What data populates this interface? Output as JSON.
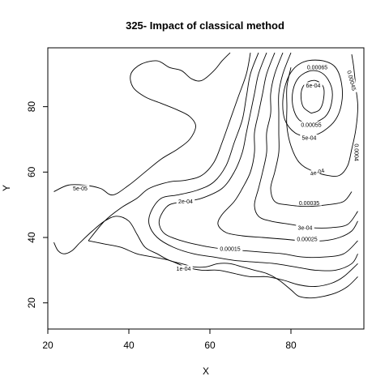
{
  "chart_data": {
    "type": "contour",
    "title": "325- Impact of classical method",
    "xlabel": "X",
    "ylabel": "Y",
    "xlim": [
      20,
      98
    ],
    "ylim": [
      12,
      98
    ],
    "xticks": [
      20,
      40,
      60,
      80
    ],
    "yticks": [
      20,
      40,
      60,
      80
    ],
    "x_tick_labels": [
      "20",
      "40",
      "60",
      "80"
    ],
    "y_tick_labels": [
      "20",
      "40",
      "60",
      "80"
    ],
    "grid": false,
    "levels": [
      {
        "label": "5e-05",
        "label_pos": [
          28,
          55
        ],
        "label_rot": 0,
        "paths": [
          [
            [
              21.5,
              54
            ],
            [
              25,
              56
            ],
            [
              29,
              56
            ],
            [
              33,
              55
            ],
            [
              36,
              53
            ],
            [
              40,
              56
            ],
            [
              44,
              60
            ],
            [
              48,
              64
            ],
            [
              52,
              67
            ],
            [
              55,
              70
            ],
            [
              56.5,
              74
            ],
            [
              55,
              77
            ],
            [
              52,
              79
            ],
            [
              48,
              81
            ],
            [
              44,
              83
            ],
            [
              41,
              86
            ],
            [
              40.5,
              90
            ],
            [
              43,
              93
            ],
            [
              47,
              94
            ],
            [
              50,
              92
            ],
            [
              53,
              91
            ],
            [
              55.5,
              88.5
            ],
            [
              58,
              88
            ],
            [
              61,
              91
            ],
            [
              63,
              94
            ],
            [
              65,
              96.5
            ]
          ],
          [
            [
              21.5,
              38.5
            ],
            [
              22.5,
              36
            ],
            [
              24,
              35
            ],
            [
              26,
              36
            ],
            [
              28,
              38.5
            ],
            [
              31,
              42
            ],
            [
              34,
              45
            ],
            [
              37,
              46.5
            ],
            [
              40,
              45
            ],
            [
              42,
              41
            ],
            [
              44,
              37
            ],
            [
              47,
              35
            ],
            [
              50,
              33
            ],
            [
              53,
              32
            ],
            [
              56,
              31
            ],
            [
              59,
              31
            ],
            [
              62,
              32
            ],
            [
              65,
              32
            ],
            [
              68,
              31
            ],
            [
              71,
              30
            ],
            [
              74,
              29
            ],
            [
              77,
              27
            ],
            [
              80,
              24
            ],
            [
              82,
              22
            ],
            [
              85,
              21.5
            ],
            [
              88,
              22
            ],
            [
              91,
              23
            ],
            [
              94,
              25
            ],
            [
              96.5,
              28
            ]
          ]
        ]
      },
      {
        "label": "1e-04",
        "label_pos": [
          53.5,
          30.5
        ],
        "label_rot": 0,
        "paths": [
          [
            [
              30,
              39
            ],
            [
              34,
              45
            ],
            [
              38,
              49
            ],
            [
              42,
              52
            ],
            [
              45,
              55
            ],
            [
              50,
              57
            ],
            [
              54,
              57.5
            ],
            [
              58,
              59
            ],
            [
              61,
              63
            ],
            [
              63,
              69
            ],
            [
              65,
              76
            ],
            [
              67,
              83
            ],
            [
              69,
              90
            ],
            [
              70,
              96.5
            ]
          ],
          [
            [
              30,
              39
            ],
            [
              34,
              38
            ],
            [
              38,
              37
            ],
            [
              42,
              35
            ],
            [
              46,
              34
            ],
            [
              50,
              33
            ],
            [
              54,
              31
            ],
            [
              58,
              30
            ],
            [
              62,
              30
            ],
            [
              66,
              29
            ],
            [
              70,
              28
            ],
            [
              74,
              28
            ],
            [
              78,
              27
            ],
            [
              82,
              25.5
            ],
            [
              86,
              25
            ],
            [
              90,
              26
            ],
            [
              93,
              28
            ],
            [
              96.5,
              32
            ]
          ]
        ]
      },
      {
        "label": "2e-04",
        "label_pos": [
          54,
          51
        ],
        "label_rot": 0,
        "paths": [
          [
            [
              72,
              96.5
            ],
            [
              70,
              90
            ],
            [
              69,
              83
            ],
            [
              68,
              76
            ],
            [
              66,
              69
            ],
            [
              64,
              62
            ],
            [
              61,
              57
            ],
            [
              57,
              54.5
            ],
            [
              52,
              53
            ],
            [
              48,
              52
            ],
            [
              45.5,
              48
            ],
            [
              45,
              44
            ],
            [
              47,
              40
            ],
            [
              51,
              37
            ],
            [
              56,
              35
            ],
            [
              61,
              34
            ],
            [
              66,
              33
            ],
            [
              71,
              32.5
            ],
            [
              76,
              32
            ],
            [
              81,
              31
            ],
            [
              86,
              30
            ],
            [
              91,
              30
            ],
            [
              95,
              32
            ],
            [
              96.5,
              35
            ]
          ]
        ]
      },
      {
        "label": "0.00015",
        "label_pos": [
          65,
          36.5
        ],
        "label_rot": 0,
        "paths": [
          [
            [
              74,
              96.5
            ],
            [
              72,
              90
            ],
            [
              71,
              84
            ],
            [
              70,
              78
            ],
            [
              69,
              72
            ],
            [
              68,
              66
            ],
            [
              66,
              60
            ],
            [
              63,
              55
            ],
            [
              58,
              52
            ],
            [
              54,
              51
            ],
            [
              50,
              50
            ],
            [
              48,
              47
            ],
            [
              47.5,
              44
            ],
            [
              49,
              41
            ],
            [
              53,
              39
            ],
            [
              58,
              37.5
            ],
            [
              63,
              36.5
            ],
            [
              68,
              36
            ],
            [
              73,
              35.5
            ],
            [
              78,
              35
            ],
            [
              83,
              34
            ],
            [
              88,
              34
            ],
            [
              93,
              35
            ],
            [
              96.5,
              39
            ]
          ]
        ]
      },
      {
        "label": "0.00025",
        "label_pos": [
          84,
          39.5
        ],
        "label_rot": 0,
        "paths": [
          [
            [
              76,
              96.5
            ],
            [
              74,
              90
            ],
            [
              73,
              84
            ],
            [
              72,
              78
            ],
            [
              71,
              72
            ],
            [
              71,
              66
            ],
            [
              70,
              60
            ],
            [
              68,
              55
            ],
            [
              66,
              51
            ],
            [
              63,
              47
            ],
            [
              62,
              44
            ],
            [
              64,
              41.5
            ],
            [
              68,
              40.5
            ],
            [
              73,
              40
            ],
            [
              78,
              39.5
            ],
            [
              83,
              39
            ],
            [
              88,
              39
            ],
            [
              92,
              40
            ],
            [
              95,
              42
            ],
            [
              96.5,
              45
            ]
          ]
        ]
      },
      {
        "label": "3e-04",
        "label_pos": [
          83.5,
          43
        ],
        "label_rot": 0,
        "paths": [
          [
            [
              78,
              96.5
            ],
            [
              76,
              90
            ],
            [
              75,
              84
            ],
            [
              75,
              78
            ],
            [
              74,
              72
            ],
            [
              74,
              66
            ],
            [
              73,
              60
            ],
            [
              72,
              55
            ],
            [
              71,
              50
            ],
            [
              72,
              46.5
            ],
            [
              75,
              45
            ],
            [
              80,
              44
            ],
            [
              85,
              43
            ],
            [
              90,
              43
            ],
            [
              94,
              44
            ],
            [
              96.5,
              48
            ]
          ]
        ]
      },
      {
        "label": "0.00035",
        "label_pos": [
          84.5,
          50.5
        ],
        "label_rot": 0,
        "paths": [
          [
            [
              80,
              96.5
            ],
            [
              78,
              90
            ],
            [
              77,
              84
            ],
            [
              77,
              78
            ],
            [
              77,
              72
            ],
            [
              77,
              66
            ],
            [
              76,
              60
            ],
            [
              75,
              55
            ],
            [
              76,
              51
            ],
            [
              79,
              50
            ],
            [
              84,
              49.5
            ],
            [
              89,
              50
            ],
            [
              93,
              51
            ],
            [
              95,
              54
            ]
          ]
        ]
      },
      {
        "label": "4e-04",
        "label_pos": [
          86.5,
          60
        ],
        "label_rot": -15,
        "paths": [
          [
            [
              80,
              92
            ],
            [
              79,
              86
            ],
            [
              79,
              80
            ],
            [
              79,
              74
            ],
            [
              80,
              68
            ],
            [
              82,
              63
            ],
            [
              85,
              60.5
            ],
            [
              89,
              59
            ],
            [
              92,
              59
            ],
            [
              94,
              62
            ],
            [
              95,
              67
            ],
            [
              96,
              73
            ],
            [
              96.5,
              80
            ],
            [
              96,
              86
            ],
            [
              95.5,
              92
            ],
            [
              95,
              96
            ]
          ]
        ]
      },
      {
        "label": "5e-04",
        "label_pos": [
          84.5,
          70.5
        ],
        "label_rot": 0,
        "paths": [
          [
            [
              84.5,
              70.5
            ],
            [
              81,
              72
            ],
            [
              78.5,
              76
            ],
            [
              78,
              82
            ],
            [
              79,
              88
            ],
            [
              81,
              92
            ],
            [
              84,
              94
            ],
            [
              88,
              94
            ],
            [
              91,
              92
            ],
            [
              92.5,
              87
            ],
            [
              92.5,
              81
            ],
            [
              91,
              76
            ],
            [
              88,
              72.5
            ],
            [
              84.5,
              70.5
            ]
          ]
        ]
      },
      {
        "label": "0.00055",
        "label_pos": [
          85,
          74.5
        ],
        "label_rot": 0,
        "paths": [
          [
            [
              85,
              74.5
            ],
            [
              82,
              76
            ],
            [
              80.5,
              80
            ],
            [
              80.5,
              85
            ],
            [
              82,
              89
            ],
            [
              85,
              91
            ],
            [
              88,
              90
            ],
            [
              90,
              86
            ],
            [
              90,
              81
            ],
            [
              88.5,
              77
            ],
            [
              85,
              74.5
            ]
          ]
        ]
      },
      {
        "label": "6e-04",
        "label_pos": [
          85.5,
          86.5
        ],
        "label_rot": 0,
        "paths": [
          [
            [
              85,
              78
            ],
            [
              83,
              80
            ],
            [
              82.5,
              84
            ],
            [
              83.5,
              87
            ],
            [
              86,
              88
            ],
            [
              88,
              86
            ],
            [
              88,
              82
            ],
            [
              87,
              79
            ],
            [
              85,
              78
            ]
          ]
        ]
      },
      {
        "label": "0.00065",
        "label_pos": [
          86.5,
          92
        ],
        "label_rot": 0,
        "paths": []
      },
      {
        "label": "0.00045",
        "label_pos": [
          95,
          88
        ],
        "label_rot": 75,
        "paths": []
      },
      {
        "label": "0.0004",
        "label_pos": [
          96.2,
          66
        ],
        "label_rot": 90,
        "paths": []
      }
    ]
  }
}
